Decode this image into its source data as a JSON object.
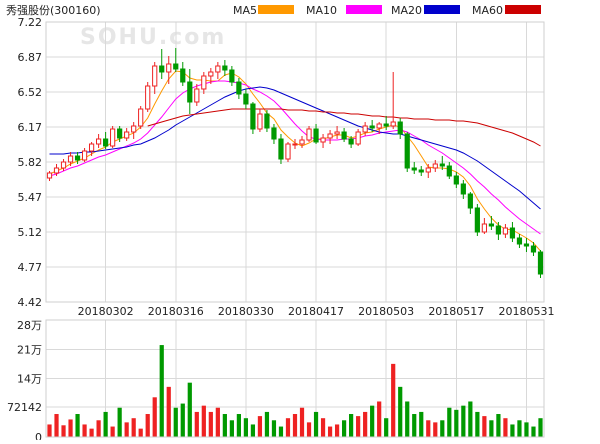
{
  "header": {
    "stock_label": "秀强股份(300160)",
    "watermark": "SOHU.com"
  },
  "legend": [
    {
      "label": "MA5",
      "color": "#ff9900"
    },
    {
      "label": "MA10",
      "color": "#ff00ff"
    },
    {
      "label": "MA20",
      "color": "#0000cc"
    },
    {
      "label": "MA60",
      "color": "#cc0000"
    }
  ],
  "colors": {
    "up": "#ee2222",
    "down": "#009900"
  },
  "chart_data": [
    {
      "type": "candlestick",
      "title": "",
      "y_ticks": [
        "7.22",
        "6.87",
        "6.52",
        "6.17",
        "5.82",
        "5.47",
        "5.12",
        "4.77",
        "4.42"
      ],
      "ylim": [
        4.42,
        7.22
      ],
      "x_ticks": [
        "20180302",
        "20180316",
        "20180330",
        "20180417",
        "20180503",
        "20180517",
        "20180531"
      ],
      "x_tick_positions": [
        8,
        18,
        28,
        38,
        48,
        58,
        68
      ],
      "ohlc": [
        [
          5.66,
          5.73,
          5.63,
          5.71
        ],
        [
          5.71,
          5.8,
          5.68,
          5.76
        ],
        [
          5.76,
          5.85,
          5.73,
          5.82
        ],
        [
          5.82,
          5.92,
          5.78,
          5.88
        ],
        [
          5.88,
          5.92,
          5.8,
          5.84
        ],
        [
          5.84,
          5.96,
          5.82,
          5.93
        ],
        [
          5.93,
          6.02,
          5.88,
          6.0
        ],
        [
          6.0,
          6.1,
          5.96,
          6.05
        ],
        [
          6.05,
          6.12,
          5.95,
          5.98
        ],
        [
          5.98,
          6.18,
          5.96,
          6.15
        ],
        [
          6.15,
          6.18,
          6.02,
          6.06
        ],
        [
          6.06,
          6.16,
          6.03,
          6.12
        ],
        [
          6.12,
          6.22,
          6.05,
          6.18
        ],
        [
          6.18,
          6.38,
          6.15,
          6.35
        ],
        [
          6.35,
          6.62,
          6.32,
          6.58
        ],
        [
          6.58,
          6.82,
          6.5,
          6.78
        ],
        [
          6.78,
          6.95,
          6.65,
          6.72
        ],
        [
          6.72,
          6.88,
          6.6,
          6.8
        ],
        [
          6.8,
          6.96,
          6.72,
          6.75
        ],
        [
          6.75,
          6.82,
          6.58,
          6.62
        ],
        [
          6.62,
          6.75,
          6.3,
          6.42
        ],
        [
          6.42,
          6.6,
          6.38,
          6.55
        ],
        [
          6.55,
          6.72,
          6.5,
          6.68
        ],
        [
          6.68,
          6.76,
          6.6,
          6.72
        ],
        [
          6.72,
          6.82,
          6.65,
          6.78
        ],
        [
          6.78,
          6.84,
          6.68,
          6.74
        ],
        [
          6.74,
          6.78,
          6.58,
          6.62
        ],
        [
          6.62,
          6.66,
          6.45,
          6.5
        ],
        [
          6.5,
          6.55,
          6.35,
          6.4
        ],
        [
          6.4,
          6.42,
          6.1,
          6.15
        ],
        [
          6.15,
          6.35,
          6.12,
          6.3
        ],
        [
          6.3,
          6.34,
          6.12,
          6.16
        ],
        [
          6.16,
          6.2,
          6.0,
          6.05
        ],
        [
          6.05,
          6.1,
          5.8,
          5.85
        ],
        [
          5.85,
          6.02,
          5.82,
          6.0
        ],
        [
          6.0,
          6.05,
          5.95,
          6.0
        ],
        [
          6.0,
          6.08,
          5.96,
          6.04
        ],
        [
          6.04,
          6.18,
          6.02,
          6.15
        ],
        [
          6.15,
          6.2,
          6.0,
          6.02
        ],
        [
          6.02,
          6.1,
          5.96,
          6.06
        ],
        [
          6.06,
          6.14,
          6.0,
          6.1
        ],
        [
          6.1,
          6.18,
          6.05,
          6.12
        ],
        [
          6.12,
          6.16,
          6.02,
          6.05
        ],
        [
          6.05,
          6.08,
          5.96,
          6.0
        ],
        [
          6.0,
          6.15,
          5.98,
          6.12
        ],
        [
          6.12,
          6.22,
          6.08,
          6.18
        ],
        [
          6.18,
          6.24,
          6.12,
          6.16
        ],
        [
          6.16,
          6.22,
          6.1,
          6.2
        ],
        [
          6.2,
          6.28,
          6.14,
          6.18
        ],
        [
          6.18,
          6.72,
          6.15,
          6.22
        ],
        [
          6.22,
          6.26,
          6.05,
          6.1
        ],
        [
          6.1,
          6.12,
          5.72,
          5.76
        ],
        [
          5.76,
          5.82,
          5.7,
          5.74
        ],
        [
          5.74,
          5.78,
          5.68,
          5.72
        ],
        [
          5.72,
          5.8,
          5.66,
          5.76
        ],
        [
          5.76,
          5.84,
          5.72,
          5.8
        ],
        [
          5.8,
          5.88,
          5.74,
          5.78
        ],
        [
          5.78,
          5.82,
          5.65,
          5.68
        ],
        [
          5.68,
          5.72,
          5.56,
          5.6
        ],
        [
          5.6,
          5.64,
          5.45,
          5.5
        ],
        [
          5.5,
          5.52,
          5.3,
          5.36
        ],
        [
          5.36,
          5.4,
          5.08,
          5.12
        ],
        [
          5.12,
          5.26,
          5.1,
          5.2
        ],
        [
          5.2,
          5.28,
          5.14,
          5.18
        ],
        [
          5.18,
          5.22,
          5.04,
          5.1
        ],
        [
          5.1,
          5.2,
          5.06,
          5.16
        ],
        [
          5.16,
          5.22,
          5.02,
          5.06
        ],
        [
          5.06,
          5.1,
          4.96,
          5.0
        ],
        [
          5.0,
          5.06,
          4.92,
          4.98
        ],
        [
          4.98,
          5.02,
          4.88,
          4.92
        ],
        [
          4.92,
          4.94,
          4.66,
          4.7
        ]
      ],
      "ma": {
        "MA5": [
          5.7,
          5.73,
          5.76,
          5.8,
          5.83,
          5.86,
          5.9,
          5.94,
          5.97,
          6.02,
          6.05,
          6.08,
          6.11,
          6.17,
          6.26,
          6.4,
          6.53,
          6.65,
          6.73,
          6.72,
          6.66,
          6.64,
          6.64,
          6.63,
          6.63,
          6.69,
          6.71,
          6.67,
          6.6,
          6.5,
          6.41,
          6.31,
          6.25,
          6.14,
          6.07,
          6.01,
          5.98,
          6.01,
          6.05,
          6.05,
          6.07,
          6.09,
          6.09,
          6.06,
          6.08,
          6.11,
          6.12,
          6.15,
          6.17,
          6.19,
          6.17,
          6.08,
          5.99,
          5.88,
          5.77,
          5.76,
          5.76,
          5.75,
          5.72,
          5.67,
          5.58,
          5.45,
          5.35,
          5.26,
          5.19,
          5.15,
          5.14,
          5.1,
          5.06,
          5.01,
          4.93
        ],
        "MA10": [
          5.68,
          5.7,
          5.73,
          5.76,
          5.78,
          5.81,
          5.84,
          5.87,
          5.89,
          5.92,
          5.95,
          5.98,
          6.01,
          6.05,
          6.11,
          6.19,
          6.27,
          6.36,
          6.45,
          6.51,
          6.55,
          6.58,
          6.6,
          6.62,
          6.63,
          6.63,
          6.62,
          6.61,
          6.59,
          6.55,
          6.52,
          6.48,
          6.43,
          6.36,
          6.28,
          6.2,
          6.13,
          6.07,
          6.05,
          6.04,
          6.04,
          6.04,
          6.05,
          6.05,
          6.06,
          6.08,
          6.09,
          6.11,
          6.12,
          6.13,
          6.14,
          6.12,
          6.08,
          6.04,
          5.99,
          5.95,
          5.91,
          5.86,
          5.81,
          5.76,
          5.7,
          5.63,
          5.57,
          5.5,
          5.44,
          5.37,
          5.31,
          5.25,
          5.2,
          5.15,
          5.1
        ],
        "MA20": [
          5.9,
          5.9,
          5.9,
          5.91,
          5.91,
          5.92,
          5.92,
          5.93,
          5.94,
          5.95,
          5.96,
          5.97,
          5.99,
          6.0,
          6.03,
          6.06,
          6.1,
          6.14,
          6.19,
          6.23,
          6.27,
          6.31,
          6.35,
          6.39,
          6.43,
          6.47,
          6.5,
          6.53,
          6.55,
          6.56,
          6.57,
          6.56,
          6.54,
          6.51,
          6.48,
          6.45,
          6.42,
          6.39,
          6.36,
          6.33,
          6.3,
          6.27,
          6.24,
          6.21,
          6.18,
          6.16,
          6.14,
          6.12,
          6.11,
          6.1,
          6.1,
          6.08,
          6.06,
          6.04,
          6.02,
          6.0,
          5.98,
          5.96,
          5.94,
          5.91,
          5.87,
          5.83,
          5.78,
          5.73,
          5.68,
          5.63,
          5.58,
          5.53,
          5.47,
          5.41,
          5.35
        ],
        "MA60": [
          null,
          null,
          null,
          null,
          null,
          null,
          null,
          null,
          null,
          null,
          null,
          null,
          null,
          null,
          6.18,
          6.2,
          6.22,
          6.24,
          6.26,
          6.28,
          6.29,
          6.3,
          6.31,
          6.32,
          6.33,
          6.34,
          6.35,
          6.35,
          6.35,
          6.35,
          6.35,
          6.35,
          6.35,
          6.35,
          6.34,
          6.34,
          6.34,
          6.33,
          6.33,
          6.32,
          6.32,
          6.31,
          6.31,
          6.3,
          6.3,
          6.29,
          6.28,
          6.28,
          6.27,
          6.27,
          6.26,
          6.26,
          6.25,
          6.25,
          6.25,
          6.24,
          6.24,
          6.24,
          6.23,
          6.23,
          6.22,
          6.21,
          6.19,
          6.17,
          6.15,
          6.13,
          6.11,
          6.08,
          6.05,
          6.02,
          5.98
        ]
      }
    },
    {
      "type": "bar",
      "title": "",
      "y_ticks": [
        "28万",
        "21万",
        "14万",
        "72142",
        "0"
      ],
      "ylim": [
        0,
        280000
      ],
      "values": [
        30000,
        55000,
        28000,
        42000,
        55000,
        30000,
        20000,
        40000,
        60000,
        25000,
        70000,
        35000,
        45000,
        20000,
        55000,
        95000,
        220000,
        120000,
        70000,
        80000,
        130000,
        60000,
        75000,
        60000,
        70000,
        55000,
        40000,
        55000,
        45000,
        30000,
        50000,
        60000,
        40000,
        25000,
        45000,
        55000,
        70000,
        35000,
        60000,
        45000,
        25000,
        30000,
        40000,
        55000,
        50000,
        60000,
        75000,
        85000,
        45000,
        175000,
        120000,
        85000,
        55000,
        60000,
        40000,
        35000,
        40000,
        70000,
        65000,
        75000,
        85000,
        60000,
        50000,
        40000,
        55000,
        45000,
        30000,
        40000,
        35000,
        25000,
        45000
      ]
    }
  ]
}
